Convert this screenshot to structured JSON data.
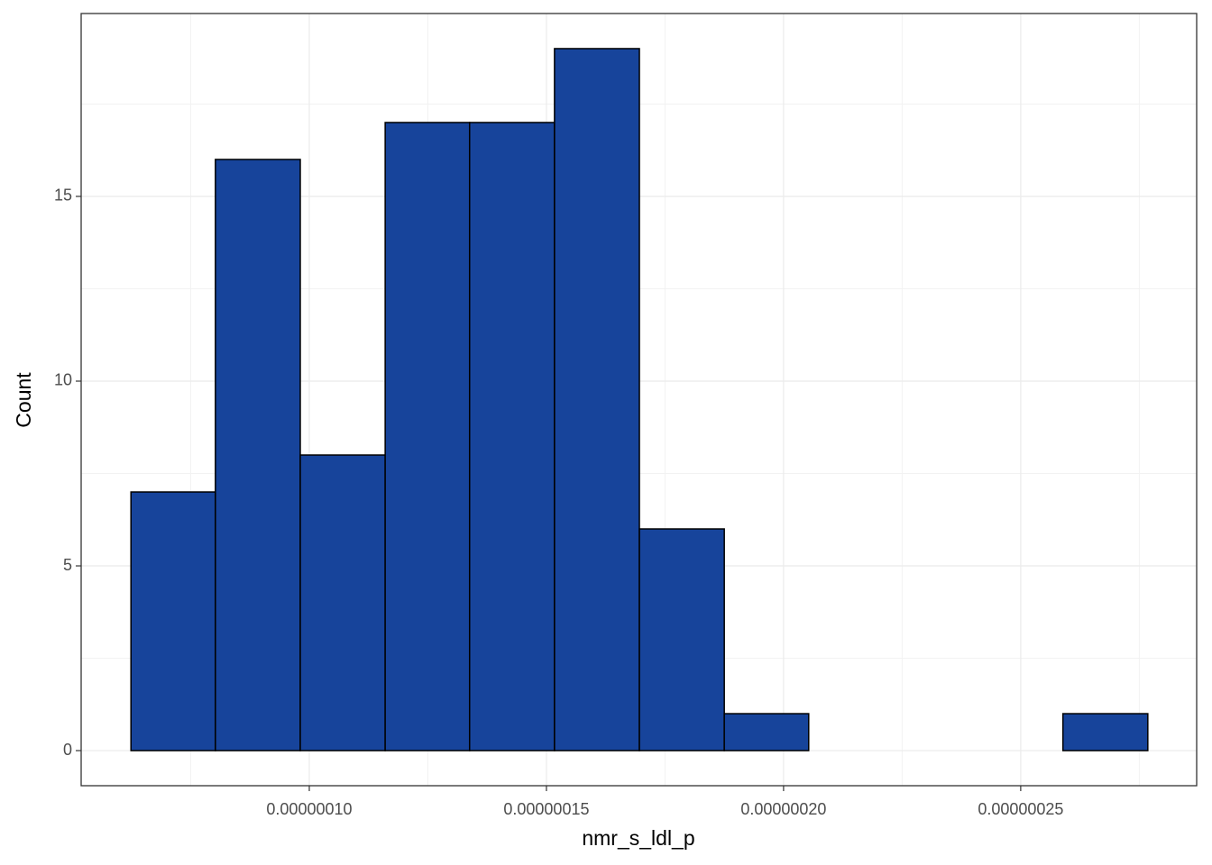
{
  "chart_data": {
    "type": "histogram",
    "x_label": "nmr_s_ldl_p",
    "y_label": "Count",
    "bins": [
      6.24e-08,
      8.02e-08,
      9.81e-08,
      1.16e-07,
      1.338e-07,
      1.517e-07,
      1.696e-07,
      1.875e-07,
      2.053e-07,
      2.232e-07,
      2.411e-07,
      2.589e-07,
      2.768e-07
    ],
    "values": [
      7,
      16,
      8,
      17,
      17,
      19,
      6,
      1,
      0,
      0,
      0,
      1
    ],
    "color": "#17449b",
    "edgecolor": "#000000",
    "xlim": [
      5.19e-08,
      2.871e-07
    ],
    "xticks": [
      {
        "value": 1e-07,
        "label": "0.00000010"
      },
      {
        "value": 1.5e-07,
        "label": "0.00000015"
      },
      {
        "value": 2e-07,
        "label": "0.00000020"
      },
      {
        "value": 2.5e-07,
        "label": "0.00000025"
      }
    ],
    "ylim": [
      -0.95,
      19.95
    ],
    "yticks": [
      0,
      5,
      10,
      15
    ],
    "grid": true
  }
}
